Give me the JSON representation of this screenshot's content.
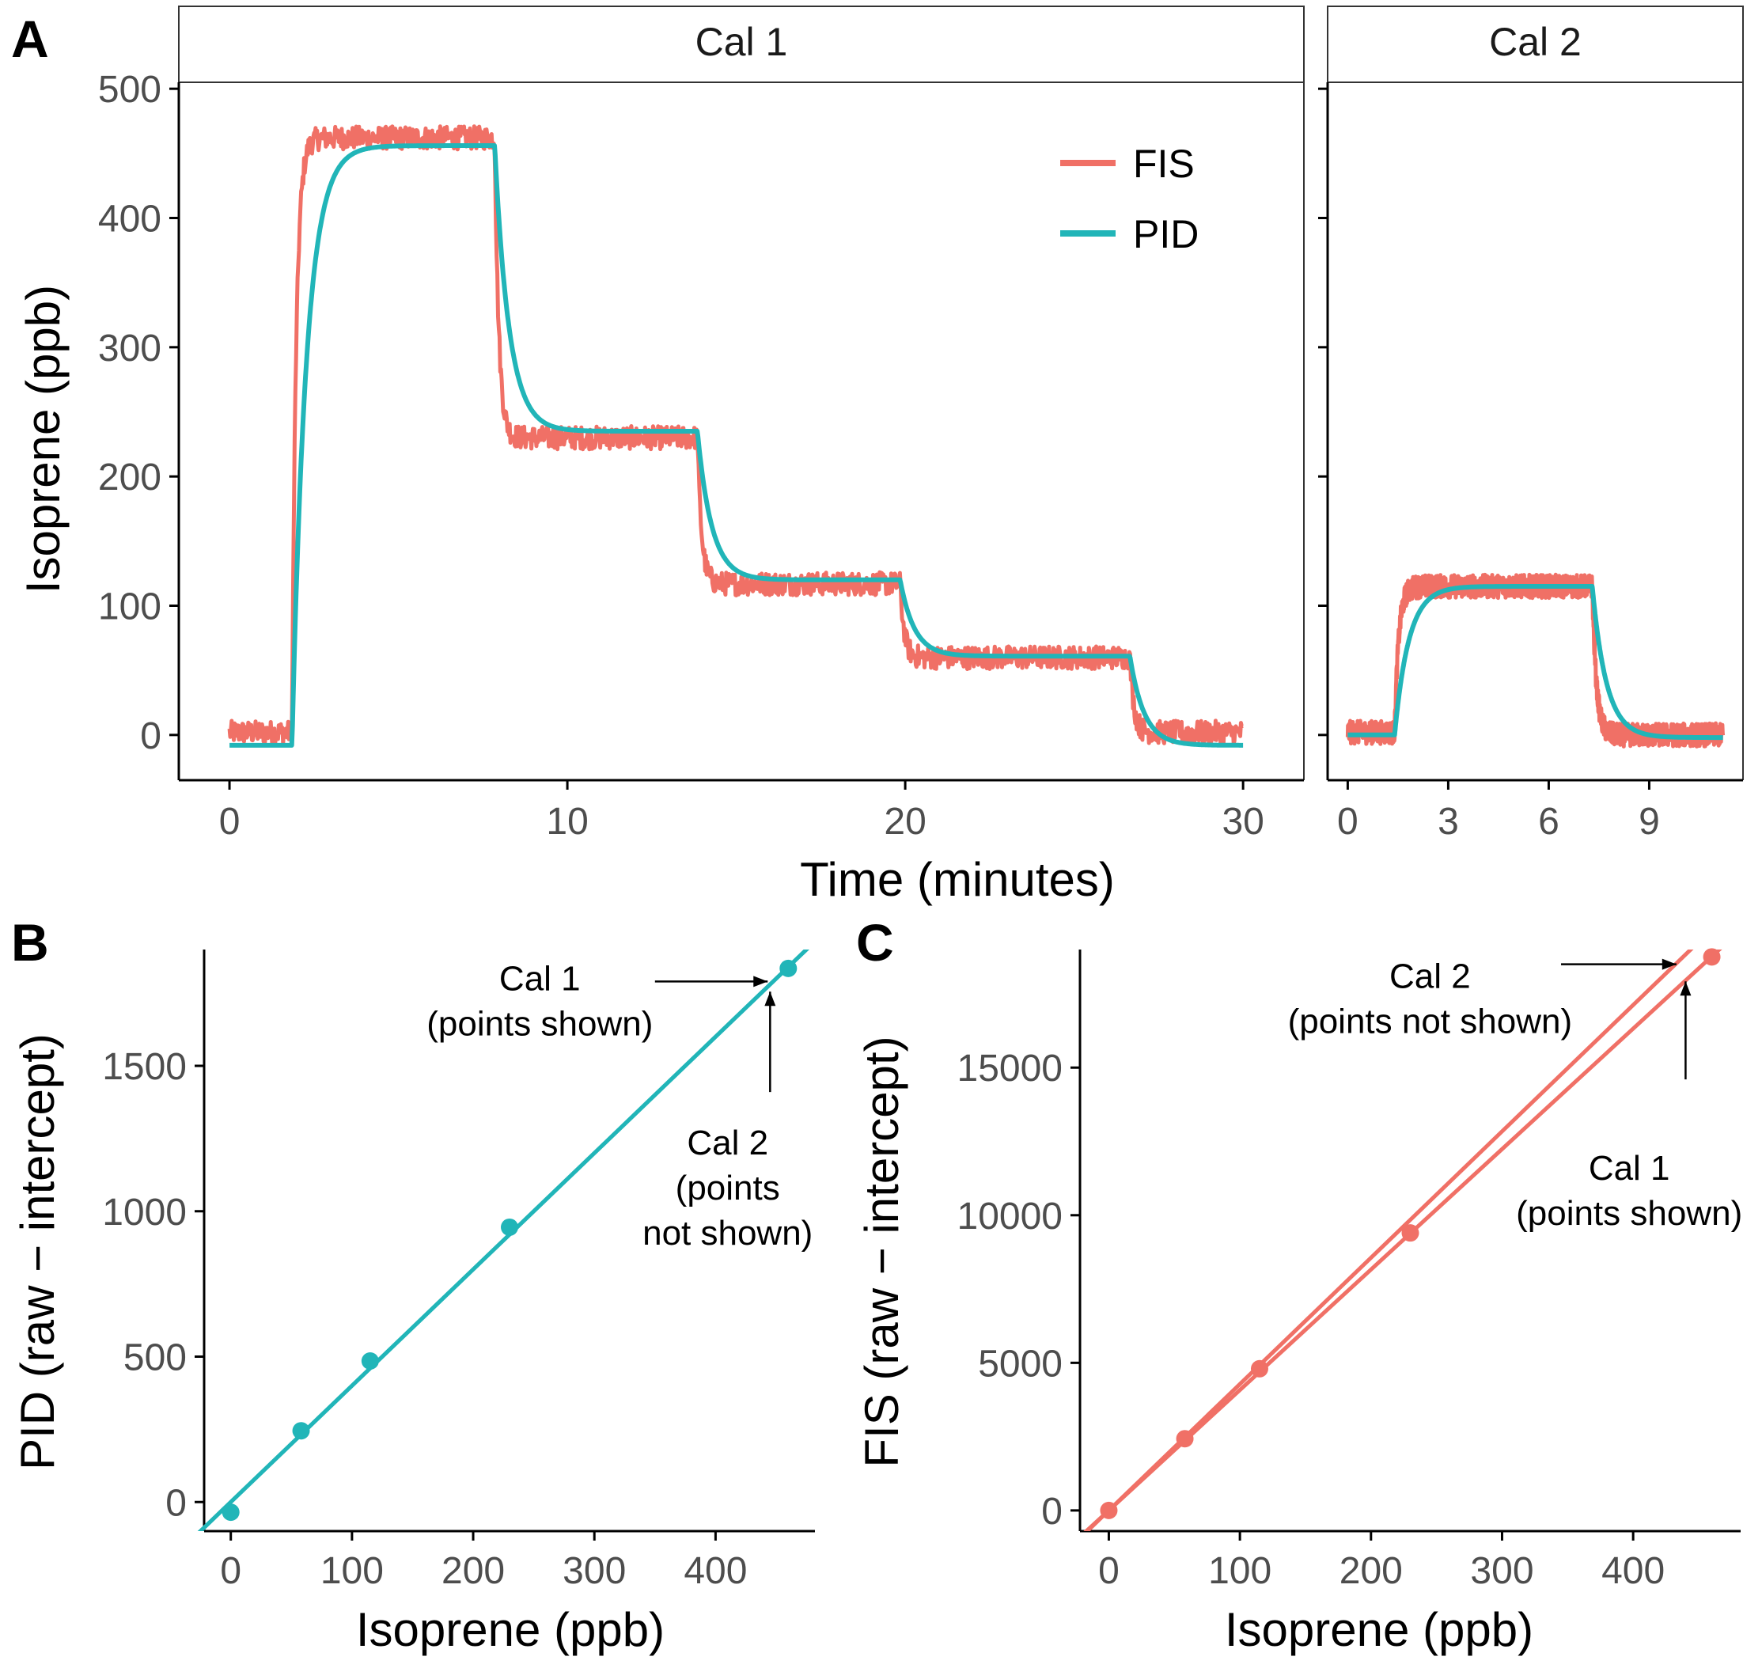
{
  "colors": {
    "fis": "#F07066",
    "pid": "#21B5B8",
    "axis": "#000000",
    "tick_text": "#4d4d4d"
  },
  "panel_a": {
    "letter": "A",
    "ylabel": "Isoprene (ppb)",
    "xlabel": "Time (minutes)",
    "legend": [
      {
        "key": "fis",
        "label": "FIS"
      },
      {
        "key": "pid",
        "label": "PID"
      }
    ]
  },
  "panel_b": {
    "letter": "B",
    "xlabel": "Isoprene (ppb)",
    "ylabel": "PID (raw − intercept)"
  },
  "panel_c": {
    "letter": "C",
    "xlabel": "Isoprene (ppb)",
    "ylabel": "FIS (raw − intercept)"
  },
  "chart_data": [
    {
      "id": "A1",
      "type": "line",
      "title": "Cal 1",
      "xlabel": "Time (minutes)",
      "ylabel": "Isoprene (ppb)",
      "xlim": [
        -1.5,
        31.8
      ],
      "ylim": [
        -35,
        505
      ],
      "xticks": [
        0,
        10,
        20,
        30
      ],
      "yticks": [
        0,
        100,
        200,
        300,
        400,
        500
      ],
      "legend_position": "top-right",
      "steps": {
        "t": [
          1.85,
          7.85,
          13.85,
          19.85,
          26.65
        ],
        "fis_levels": [
          2,
          462,
          230,
          117,
          60,
          2
        ],
        "pid_levels": [
          -8,
          456,
          235,
          120,
          61,
          -8
        ]
      },
      "x_end": 30,
      "series": [
        {
          "name": "FIS",
          "noisy": true
        },
        {
          "name": "PID",
          "noisy": false
        }
      ]
    },
    {
      "id": "A2",
      "type": "line",
      "title": "Cal 2",
      "xlabel": "Time (minutes)",
      "ylabel": "Isoprene (ppb)",
      "xlim": [
        -0.6,
        11.8
      ],
      "ylim": [
        -35,
        505
      ],
      "xticks": [
        0,
        3,
        6,
        9
      ],
      "yticks": [
        0,
        100,
        200,
        300,
        400,
        500
      ],
      "steps": {
        "t": [
          1.4,
          7.3
        ],
        "fis_levels": [
          2,
          115,
          0
        ],
        "pid_levels": [
          0,
          115,
          -2
        ]
      },
      "x_end": 11.2,
      "series": [
        {
          "name": "FIS",
          "noisy": true
        },
        {
          "name": "PID",
          "noisy": false
        }
      ]
    },
    {
      "id": "B",
      "type": "scatter",
      "xlabel": "Isoprene (ppb)",
      "ylabel": "PID (raw − intercept)",
      "xlim": [
        -22,
        482
      ],
      "ylim": [
        -100,
        1900
      ],
      "xticks": [
        0,
        100,
        200,
        300,
        400
      ],
      "yticks": [
        0,
        500,
        1000,
        1500
      ],
      "points": [
        {
          "x": 0,
          "y": -35
        },
        {
          "x": 58,
          "y": 245
        },
        {
          "x": 115,
          "y": 485
        },
        {
          "x": 230,
          "y": 945
        },
        {
          "x": 460,
          "y": 1835
        }
      ],
      "fit_lines": [
        {
          "name": "Cal 1",
          "slope": 4.0,
          "intercept": 0
        },
        {
          "name": "Cal 2",
          "slope": 4.0,
          "intercept": 0
        }
      ],
      "annotations": [
        {
          "lines": [
            "Cal 1",
            "(points shown)"
          ],
          "x": 255,
          "y": 1760,
          "arrow_from": [
            350,
            1790
          ],
          "arrow_to": [
            443,
            1790
          ]
        },
        {
          "lines": [
            "Cal 2",
            "(points",
            "not shown)"
          ],
          "x": 410,
          "y": 1195,
          "arrow_from": [
            445,
            1410
          ],
          "arrow_to": [
            445,
            1755
          ]
        }
      ]
    },
    {
      "id": "C",
      "type": "scatter",
      "xlabel": "Isoprene (ppb)",
      "ylabel": "FIS (raw − intercept)",
      "xlim": [
        -22,
        482
      ],
      "ylim": [
        -700,
        19000
      ],
      "xticks": [
        0,
        100,
        200,
        300,
        400
      ],
      "yticks": [
        0,
        5000,
        10000,
        15000
      ],
      "points": [
        {
          "x": 0,
          "y": 0
        },
        {
          "x": 58,
          "y": 2430
        },
        {
          "x": 115,
          "y": 4800
        },
        {
          "x": 230,
          "y": 9400
        },
        {
          "x": 460,
          "y": 18750
        }
      ],
      "fit_lines": [
        {
          "name": "Cal 1",
          "slope": 40.8,
          "intercept": 0
        },
        {
          "name": "Cal 2",
          "slope": 42.8,
          "intercept": 0
        }
      ],
      "annotations": [
        {
          "lines": [
            "Cal 2",
            "(points not shown)"
          ],
          "x": 245,
          "y": 17700,
          "arrow_from": [
            345,
            18500
          ],
          "arrow_to": [
            433,
            18500
          ]
        },
        {
          "lines": [
            "Cal 1",
            "(points shown)"
          ],
          "x": 397,
          "y": 11200,
          "arrow_from": [
            440,
            14600
          ],
          "arrow_to": [
            440,
            17920
          ]
        }
      ]
    }
  ]
}
